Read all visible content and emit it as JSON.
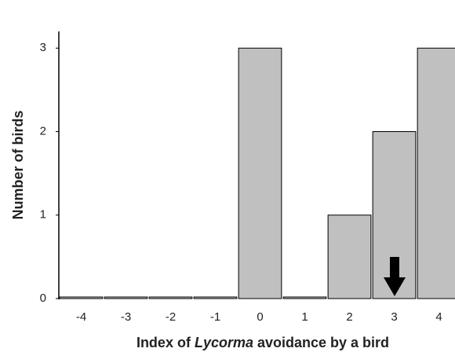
{
  "chart_data": {
    "type": "bar",
    "categories": [
      "-4",
      "-3",
      "-2",
      "-1",
      "0",
      "1",
      "2",
      "3",
      "4"
    ],
    "values": [
      0,
      0,
      0,
      0,
      3,
      0,
      1,
      2,
      3
    ],
    "color": "#c0c0c0",
    "ylabel": "Number of birds",
    "xlabel_parts": [
      "Index of ",
      "Lycorma",
      " avoidance by a bird"
    ],
    "ylim": [
      0,
      3.2
    ],
    "yticks": [
      0,
      1,
      2,
      3
    ],
    "grid": false
  }
}
